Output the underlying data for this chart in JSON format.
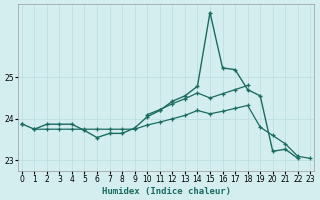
{
  "xlabel": "Humidex (Indice chaleur)",
  "bg_color": "#d4eef0",
  "grid_color": "#b8dde0",
  "line_color": "#1a6b60",
  "xlim": [
    -0.3,
    23.3
  ],
  "ylim": [
    22.75,
    26.75
  ],
  "yticks": [
    23,
    24,
    25
  ],
  "xticks": [
    0,
    1,
    2,
    3,
    4,
    5,
    6,
    7,
    8,
    9,
    10,
    11,
    12,
    13,
    14,
    15,
    16,
    17,
    18,
    19,
    20,
    21,
    22,
    23
  ],
  "line1_y": [
    23.88,
    23.75,
    23.87,
    23.87,
    23.87,
    23.72,
    23.55,
    23.65,
    23.65,
    23.78,
    24.05,
    24.2,
    24.42,
    24.55,
    24.78,
    26.55,
    25.22,
    25.18,
    24.7,
    24.55,
    23.22,
    23.27,
    23.05,
    null
  ],
  "line2_y": [
    23.88,
    null,
    null,
    null,
    null,
    null,
    null,
    null,
    null,
    null,
    24.1,
    24.22,
    24.36,
    24.48,
    24.62,
    24.5,
    24.6,
    24.7,
    24.8,
    null,
    null,
    null,
    null,
    null
  ],
  "line3_y": [
    null,
    23.75,
    23.75,
    23.75,
    23.75,
    23.75,
    23.75,
    23.75,
    23.75,
    23.75,
    23.85,
    23.92,
    24.0,
    24.08,
    24.2,
    24.12,
    24.18,
    24.25,
    24.32,
    23.8,
    23.6,
    23.4,
    23.1,
    23.05
  ]
}
